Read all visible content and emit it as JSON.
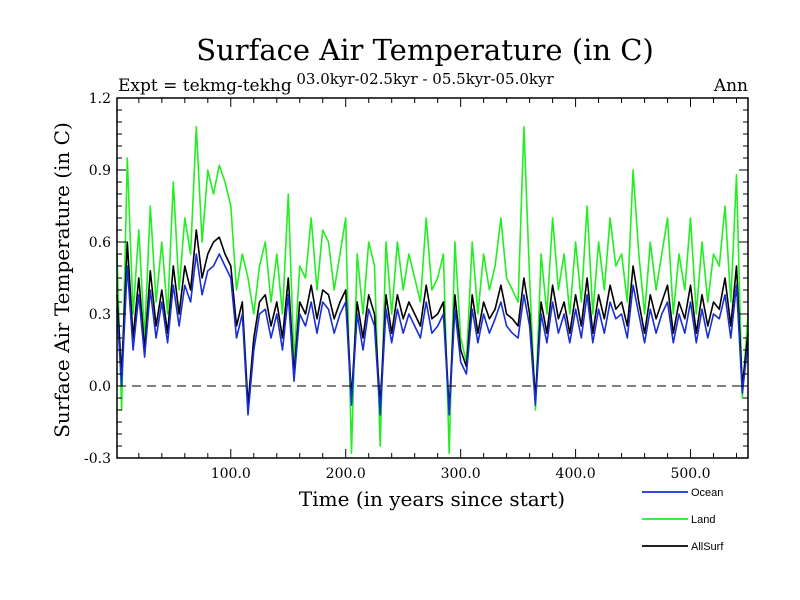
{
  "chart_data": {
    "type": "line",
    "title": "Surface Air Temperature (in C)",
    "subtitle": "03.0kyr-02.5kyr - 05.5kyr-05.0kyr",
    "expt_label": "Expt = tekmg-tekhg",
    "season_label": "Ann",
    "xlabel": "Time (in years since start)",
    "ylabel": "Surface Air Temperature (in C)",
    "xlim": [
      1,
      550
    ],
    "ylim": [
      -0.3,
      1.2
    ],
    "x_ticks": [
      {
        "value": 100,
        "label": "100.0"
      },
      {
        "value": 200,
        "label": "200.0"
      },
      {
        "value": 300,
        "label": "300.0"
      },
      {
        "value": 400,
        "label": "400.0"
      },
      {
        "value": 500,
        "label": "500.0"
      }
    ],
    "y_ticks": [
      {
        "value": -0.3,
        "label": "-0.3"
      },
      {
        "value": 0.0,
        "label": "0.0"
      },
      {
        "value": 0.3,
        "label": "0.3"
      },
      {
        "value": 0.6,
        "label": "0.6"
      },
      {
        "value": 0.9,
        "label": "0.9"
      },
      {
        "value": 1.2,
        "label": "1.2"
      }
    ],
    "reference_line": {
      "value": 0.0,
      "style": "dashed"
    },
    "legend_position": "bottom-right",
    "series": [
      {
        "name": "Land",
        "color": "#22ee22",
        "x": [
          1,
          5,
          10,
          15,
          20,
          25,
          30,
          35,
          40,
          45,
          50,
          55,
          60,
          65,
          70,
          75,
          80,
          85,
          90,
          95,
          100,
          105,
          110,
          115,
          120,
          125,
          130,
          135,
          140,
          145,
          150,
          155,
          160,
          165,
          170,
          175,
          180,
          185,
          190,
          195,
          200,
          205,
          210,
          215,
          220,
          225,
          230,
          235,
          240,
          245,
          250,
          255,
          260,
          265,
          270,
          275,
          280,
          285,
          290,
          295,
          300,
          305,
          310,
          315,
          320,
          325,
          330,
          335,
          340,
          345,
          350,
          355,
          360,
          365,
          370,
          375,
          380,
          385,
          390,
          395,
          400,
          405,
          410,
          415,
          420,
          425,
          430,
          435,
          440,
          445,
          450,
          455,
          460,
          465,
          470,
          475,
          480,
          485,
          490,
          495,
          500,
          505,
          510,
          515,
          520,
          525,
          530,
          535,
          540,
          545,
          550
        ],
        "values": [
          0.55,
          -0.1,
          0.95,
          0.3,
          0.65,
          0.2,
          0.75,
          0.35,
          0.6,
          0.3,
          0.85,
          0.4,
          0.7,
          0.55,
          1.08,
          0.6,
          0.9,
          0.8,
          0.92,
          0.85,
          0.75,
          0.4,
          0.55,
          0.45,
          0.3,
          0.5,
          0.6,
          0.35,
          0.55,
          0.3,
          0.8,
          0.1,
          0.5,
          0.45,
          0.7,
          0.4,
          0.65,
          0.6,
          0.4,
          0.55,
          0.7,
          -0.28,
          0.55,
          0.3,
          0.6,
          0.5,
          -0.25,
          0.6,
          0.3,
          0.6,
          0.4,
          0.55,
          0.45,
          0.35,
          0.7,
          0.4,
          0.45,
          0.55,
          -0.28,
          0.6,
          0.2,
          0.1,
          0.6,
          0.3,
          0.55,
          0.4,
          0.5,
          0.7,
          0.45,
          0.4,
          0.35,
          1.08,
          0.45,
          -0.1,
          0.55,
          0.3,
          0.7,
          0.4,
          0.55,
          0.3,
          0.6,
          0.35,
          0.75,
          0.3,
          0.6,
          0.4,
          0.7,
          0.5,
          0.55,
          0.35,
          0.9,
          0.55,
          0.3,
          0.6,
          0.4,
          0.55,
          0.7,
          0.3,
          0.55,
          0.4,
          0.7,
          0.3,
          0.6,
          0.35,
          0.55,
          0.5,
          0.75,
          0.35,
          0.88,
          -0.05,
          0.3
        ]
      },
      {
        "name": "AllSurf",
        "color": "#000000",
        "x": [
          1,
          5,
          10,
          15,
          20,
          25,
          30,
          35,
          40,
          45,
          50,
          55,
          60,
          65,
          70,
          75,
          80,
          85,
          90,
          95,
          100,
          105,
          110,
          115,
          120,
          125,
          130,
          135,
          140,
          145,
          150,
          155,
          160,
          165,
          170,
          175,
          180,
          185,
          190,
          195,
          200,
          205,
          210,
          215,
          220,
          225,
          230,
          235,
          240,
          245,
          250,
          255,
          260,
          265,
          270,
          275,
          280,
          285,
          290,
          295,
          300,
          305,
          310,
          315,
          320,
          325,
          330,
          335,
          340,
          345,
          350,
          355,
          360,
          365,
          370,
          375,
          380,
          385,
          390,
          395,
          400,
          405,
          410,
          415,
          420,
          425,
          430,
          435,
          440,
          445,
          450,
          455,
          460,
          465,
          470,
          475,
          480,
          485,
          490,
          495,
          500,
          505,
          510,
          515,
          520,
          525,
          530,
          535,
          540,
          545,
          550
        ],
        "values": [
          0.38,
          0.05,
          0.6,
          0.2,
          0.45,
          0.15,
          0.48,
          0.25,
          0.4,
          0.22,
          0.5,
          0.3,
          0.5,
          0.4,
          0.65,
          0.45,
          0.55,
          0.6,
          0.62,
          0.55,
          0.5,
          0.25,
          0.35,
          -0.08,
          0.2,
          0.35,
          0.38,
          0.25,
          0.35,
          0.2,
          0.45,
          0.05,
          0.35,
          0.3,
          0.42,
          0.28,
          0.4,
          0.38,
          0.28,
          0.35,
          0.4,
          -0.05,
          0.35,
          0.2,
          0.38,
          0.3,
          -0.08,
          0.38,
          0.22,
          0.38,
          0.28,
          0.35,
          0.3,
          0.25,
          0.42,
          0.28,
          0.3,
          0.35,
          -0.1,
          0.38,
          0.15,
          0.08,
          0.38,
          0.22,
          0.35,
          0.28,
          0.32,
          0.42,
          0.3,
          0.28,
          0.25,
          0.45,
          0.3,
          -0.05,
          0.35,
          0.22,
          0.42,
          0.28,
          0.35,
          0.22,
          0.38,
          0.25,
          0.45,
          0.22,
          0.38,
          0.28,
          0.42,
          0.32,
          0.35,
          0.25,
          0.5,
          0.35,
          0.22,
          0.38,
          0.28,
          0.35,
          0.42,
          0.22,
          0.35,
          0.28,
          0.42,
          0.22,
          0.38,
          0.25,
          0.35,
          0.32,
          0.45,
          0.25,
          0.5,
          0.0,
          0.22
        ]
      },
      {
        "name": "Ocean",
        "color": "#1a2ed8",
        "x": [
          1,
          5,
          10,
          15,
          20,
          25,
          30,
          35,
          40,
          45,
          50,
          55,
          60,
          65,
          70,
          75,
          80,
          85,
          90,
          95,
          100,
          105,
          110,
          115,
          120,
          125,
          130,
          135,
          140,
          145,
          150,
          155,
          160,
          165,
          170,
          175,
          180,
          185,
          190,
          195,
          200,
          205,
          210,
          215,
          220,
          225,
          230,
          235,
          240,
          245,
          250,
          255,
          260,
          265,
          270,
          275,
          280,
          285,
          290,
          295,
          300,
          305,
          310,
          315,
          320,
          325,
          330,
          335,
          340,
          345,
          350,
          355,
          360,
          365,
          370,
          375,
          380,
          385,
          390,
          395,
          400,
          405,
          410,
          415,
          420,
          425,
          430,
          435,
          440,
          445,
          450,
          455,
          460,
          465,
          470,
          475,
          480,
          485,
          490,
          495,
          500,
          505,
          510,
          515,
          520,
          525,
          530,
          535,
          540,
          545,
          550
        ],
        "values": [
          0.32,
          0.0,
          0.5,
          0.15,
          0.38,
          0.12,
          0.4,
          0.2,
          0.35,
          0.18,
          0.42,
          0.25,
          0.42,
          0.35,
          0.55,
          0.38,
          0.48,
          0.5,
          0.55,
          0.5,
          0.45,
          0.2,
          0.3,
          -0.12,
          0.15,
          0.3,
          0.32,
          0.2,
          0.3,
          0.15,
          0.38,
          0.02,
          0.3,
          0.25,
          0.35,
          0.22,
          0.35,
          0.32,
          0.22,
          0.3,
          0.35,
          -0.08,
          0.3,
          0.15,
          0.32,
          0.25,
          -0.12,
          0.32,
          0.18,
          0.32,
          0.22,
          0.3,
          0.25,
          0.2,
          0.35,
          0.22,
          0.25,
          0.3,
          -0.12,
          0.32,
          0.1,
          0.05,
          0.32,
          0.18,
          0.3,
          0.22,
          0.28,
          0.35,
          0.25,
          0.22,
          0.2,
          0.38,
          0.25,
          -0.08,
          0.3,
          0.18,
          0.35,
          0.22,
          0.3,
          0.18,
          0.32,
          0.2,
          0.38,
          0.18,
          0.32,
          0.22,
          0.35,
          0.28,
          0.3,
          0.2,
          0.42,
          0.3,
          0.18,
          0.32,
          0.22,
          0.3,
          0.35,
          0.18,
          0.3,
          0.22,
          0.35,
          0.18,
          0.32,
          0.2,
          0.3,
          0.28,
          0.38,
          0.2,
          0.42,
          -0.03,
          0.18
        ]
      }
    ],
    "legend": [
      {
        "name": "Ocean",
        "color": "#1a2ed8"
      },
      {
        "name": "Land",
        "color": "#22ee22"
      },
      {
        "name": "AllSurf",
        "color": "#000000"
      }
    ]
  }
}
